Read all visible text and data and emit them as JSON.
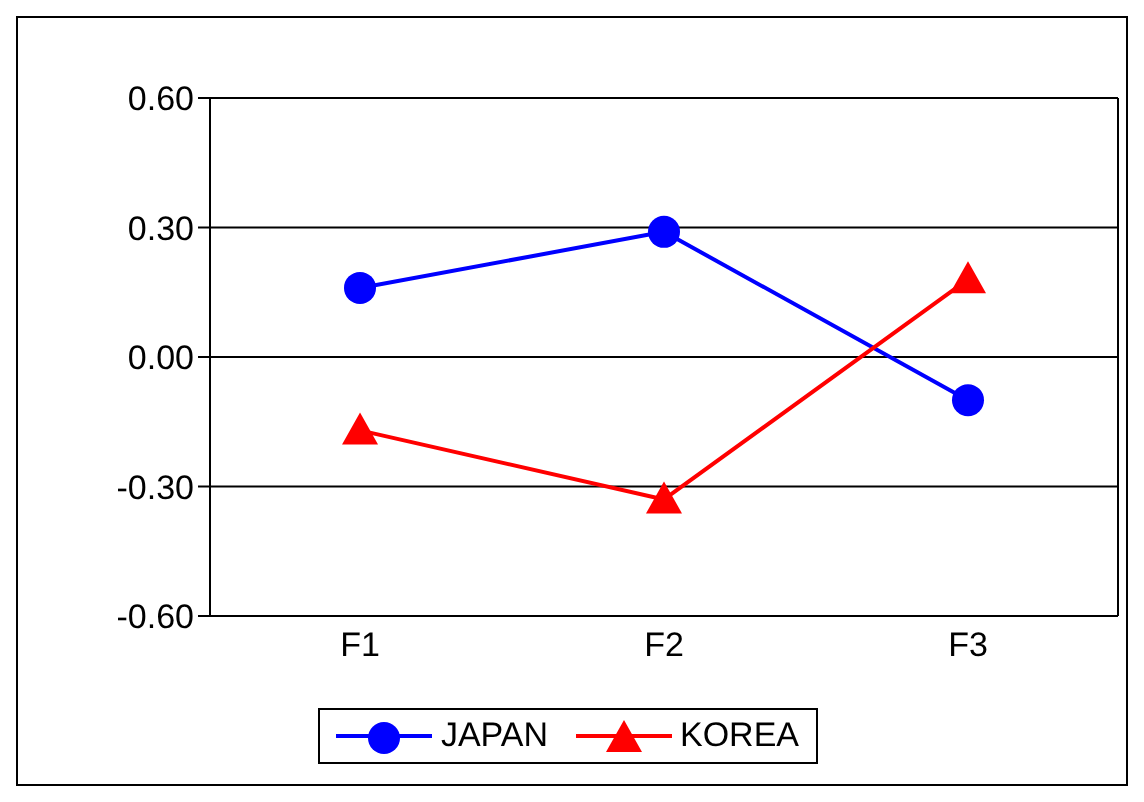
{
  "chart_data": {
    "type": "line",
    "categories": [
      "F1",
      "F2",
      "F3"
    ],
    "series": [
      {
        "name": "JAPAN",
        "color": "#0000ff",
        "marker": "circle",
        "values": [
          0.16,
          0.29,
          -0.1
        ]
      },
      {
        "name": "KOREA",
        "color": "#ff0000",
        "marker": "triangle",
        "values": [
          -0.17,
          -0.33,
          0.18
        ]
      }
    ],
    "ylim": [
      -0.6,
      0.6
    ],
    "yticks": [
      {
        "value": -0.6,
        "label": "-0.60"
      },
      {
        "value": -0.3,
        "label": "-0.30"
      },
      {
        "value": 0,
        "label": "0.00"
      },
      {
        "value": 0.3,
        "label": "0.30"
      },
      {
        "value": 0.6,
        "label": "0.60"
      }
    ],
    "grid": "y",
    "legend": "bottom",
    "line_style": "solid"
  }
}
